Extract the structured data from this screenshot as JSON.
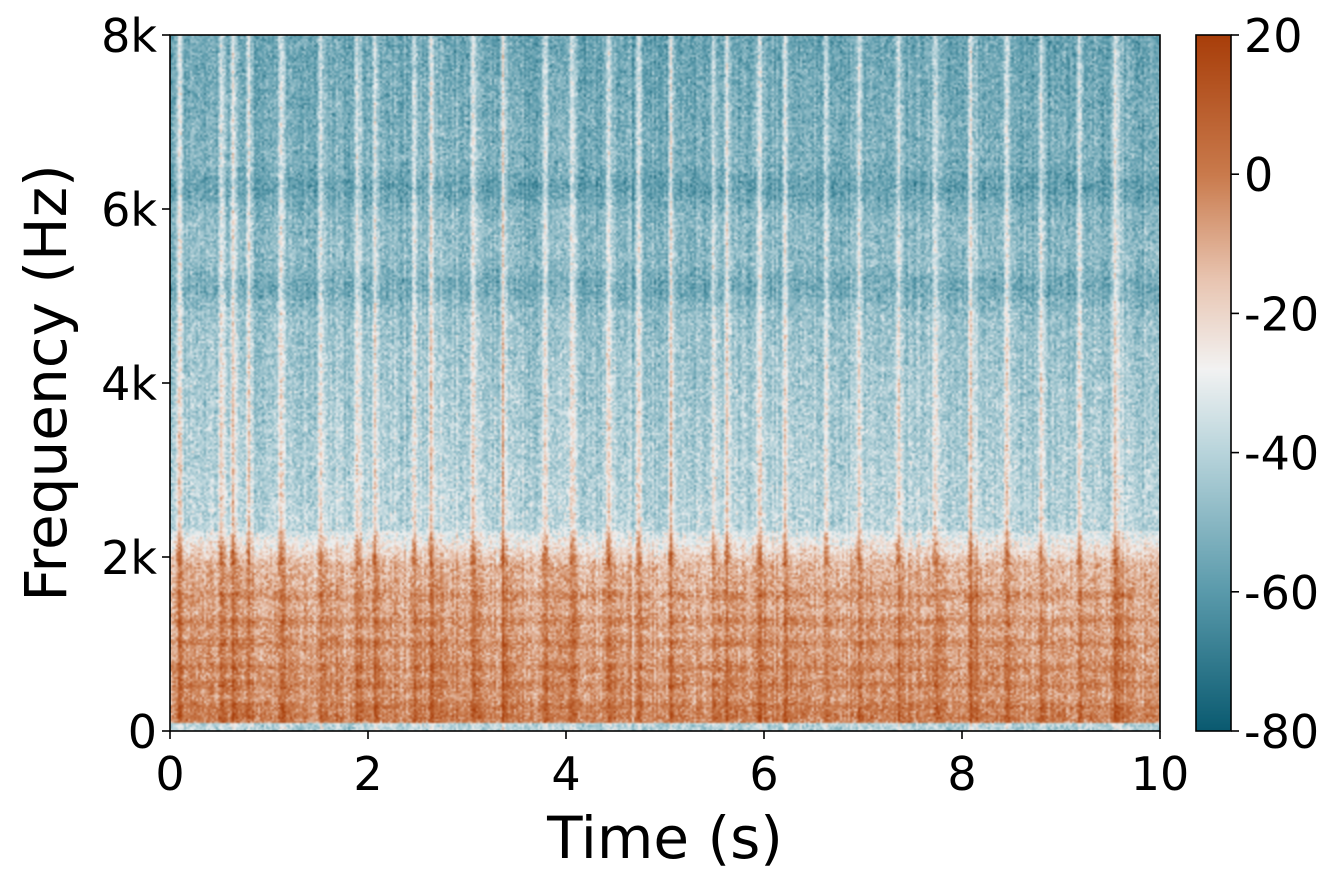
{
  "chart_data": {
    "type": "heatmap",
    "title": "",
    "xlabel": "Time (s)",
    "ylabel": "Frequency (Hz)",
    "xlim": [
      0,
      10
    ],
    "ylim": [
      0,
      8000
    ],
    "x_ticks": [
      {
        "value": 0,
        "label": "0"
      },
      {
        "value": 2,
        "label": "2"
      },
      {
        "value": 4,
        "label": "4"
      },
      {
        "value": 6,
        "label": "6"
      },
      {
        "value": 8,
        "label": "8"
      },
      {
        "value": 10,
        "label": "10"
      }
    ],
    "y_ticks": [
      {
        "value": 0,
        "label": "0"
      },
      {
        "value": 2000,
        "label": "2k"
      },
      {
        "value": 4000,
        "label": "4k"
      },
      {
        "value": 6000,
        "label": "6k"
      },
      {
        "value": 8000,
        "label": "8k"
      }
    ],
    "colorbar": {
      "range": [
        -80,
        20
      ],
      "ticks": [
        {
          "value": 20,
          "label": "20"
        },
        {
          "value": 0,
          "label": "0"
        },
        {
          "value": -20,
          "label": "-20"
        },
        {
          "value": -40,
          "label": "-40"
        },
        {
          "value": -60,
          "label": "-60"
        },
        {
          "value": -80,
          "label": "-80"
        }
      ],
      "colormap": [
        {
          "value": -80,
          "color": "#0a5a70"
        },
        {
          "value": -60,
          "color": "#5a9aab"
        },
        {
          "value": -40,
          "color": "#b8d4db"
        },
        {
          "value": -28,
          "color": "#f2f2f2"
        },
        {
          "value": -15,
          "color": "#e8c4b0"
        },
        {
          "value": 0,
          "color": "#c97a4c"
        },
        {
          "value": 20,
          "color": "#a83e0a"
        }
      ]
    },
    "onsets_s": [
      0.08,
      0.5,
      0.62,
      0.78,
      1.1,
      1.5,
      1.88,
      2.05,
      2.45,
      2.62,
      3.05,
      3.35,
      3.78,
      4.05,
      4.42,
      4.72,
      5.05,
      5.48,
      5.62,
      5.95,
      6.2,
      6.62,
      6.95,
      7.35,
      7.72,
      8.08,
      8.45,
      8.8,
      9.18,
      9.55
    ],
    "harmonic_bands_hz": [
      150,
      270,
      520,
      720,
      1000,
      1250,
      1550
    ],
    "high_band_valleys_hz": [
      6250,
      5100
    ]
  }
}
